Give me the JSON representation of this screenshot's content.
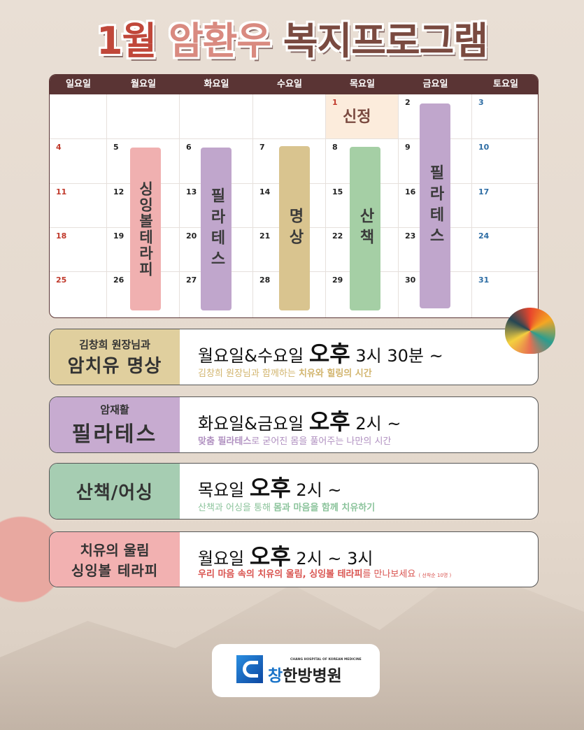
{
  "title": {
    "part1": "1월",
    "part2": "암환우",
    "part3": "복지프로그램",
    "colors": {
      "part1": "#c0473a",
      "part2": "#d98a80",
      "part3": "#7a4a40"
    }
  },
  "calendar": {
    "weekdays": [
      "일요일",
      "월요일",
      "화요일",
      "수요일",
      "목요일",
      "금요일",
      "토요일"
    ],
    "weeks": [
      [
        "",
        "",
        "",
        "",
        "1",
        "2",
        "3"
      ],
      [
        "4",
        "5",
        "6",
        "7",
        "8",
        "9",
        "10"
      ],
      [
        "11",
        "12",
        "13",
        "14",
        "15",
        "16",
        "17"
      ],
      [
        "18",
        "19",
        "20",
        "21",
        "22",
        "23",
        "24"
      ],
      [
        "25",
        "26",
        "27",
        "28",
        "29",
        "30",
        "31"
      ]
    ],
    "holiday": {
      "date": "1",
      "label": "신정"
    },
    "bars": [
      {
        "day": "월요일",
        "label": "싱잉볼테라피",
        "color": "#f0b0b0"
      },
      {
        "day": "화요일",
        "label": "필라테스",
        "color": "#c0a6cc"
      },
      {
        "day": "수요일",
        "label": "명상",
        "color": "#d9c48f"
      },
      {
        "day": "목요일",
        "label": "산책",
        "color": "#a5cfa5"
      },
      {
        "day": "금요일",
        "label": "필라테스",
        "color": "#c0a6cc"
      }
    ]
  },
  "programs": [
    {
      "label_top": "김창희 원장님과",
      "label_main": "암치유 명상",
      "color": "#e0cf9e",
      "schedule": "월요일&수요일",
      "pm": "오후",
      "time": "3시 30분 ~",
      "sub_plain": "김창희 원장님과 함께하는 ",
      "sub_bold": "치유와 힐링의 시간",
      "sub_after": "",
      "sub_color": "#d2b56e"
    },
    {
      "label_top": "암재활",
      "label_main": "필라테스",
      "color": "#c7abd0",
      "schedule": "화요일&금요일",
      "pm": "오후",
      "time": "2시 ~",
      "sub_bold_first": "맞춤 필라테스",
      "sub_plain": "로 굳어진 몸을 풀어주는 나만의 시간",
      "sub_color": "#b090c0"
    },
    {
      "label_main": "산책/어싱",
      "color": "#a6cdb2",
      "schedule": "목요일",
      "pm": "오후",
      "time": "2시 ~",
      "sub_plain": "산책과 어싱을 통해 ",
      "sub_bold": "몸과 마음을 함께 치유하기",
      "sub_color": "#8cc49c"
    },
    {
      "label_top": "치유의 울림",
      "label_main": "싱잉볼 테라피",
      "color": "#f2b1b1",
      "schedule": "월요일",
      "pm": "오후",
      "time": "2시 ~ 3시",
      "sub_bold_first": "우리 마음 속의 치유의 울림, 싱잉볼 테라피",
      "sub_plain": "를 만나보세요",
      "sub_note": "( 선착순 10명 )",
      "sub_color": "#d9534f"
    }
  ],
  "logo": {
    "english": "CHANG HOSPITAL OF KOREAN MEDICINE",
    "korean_accent": "창",
    "korean_rest": "한방병원",
    "brand_color": "#1a73c8"
  }
}
